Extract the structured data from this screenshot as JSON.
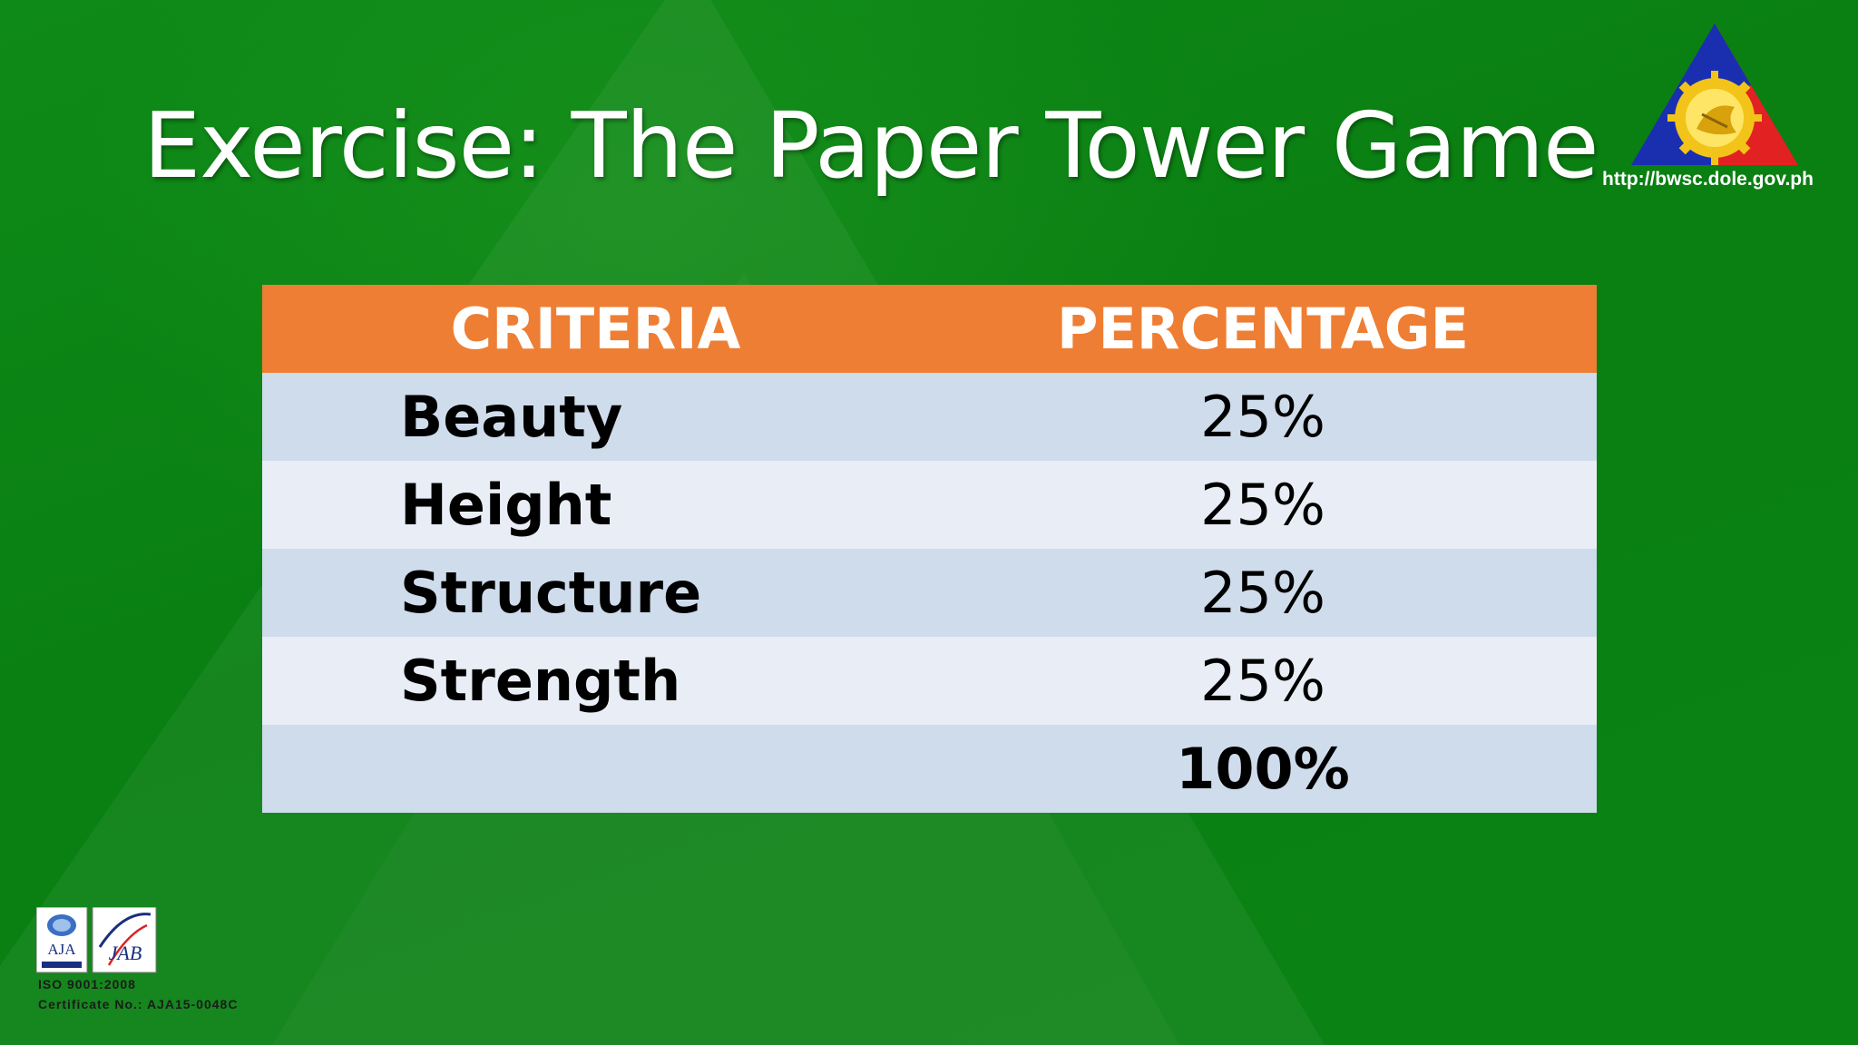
{
  "slide": {
    "title": "Exercise: The Paper Tower Game",
    "logo_url": "http://bwsc.dole.gov.ph"
  },
  "table": {
    "headers": [
      "CRITERIA",
      "PERCENTAGE"
    ],
    "rows": [
      {
        "criteria": "Beauty",
        "percentage": "25%"
      },
      {
        "criteria": "Height",
        "percentage": "25%"
      },
      {
        "criteria": "Structure",
        "percentage": "25%"
      },
      {
        "criteria": "Strength",
        "percentage": "25%"
      }
    ],
    "total": "100%"
  },
  "certification": {
    "badge_aja": "AJA",
    "badge_jab": "JAB",
    "standard": "ISO 9001:2008",
    "certificate": "Certificate No.: AJA15-0048C"
  },
  "colors": {
    "background": "#0b8514",
    "header": "#ee7e33",
    "row_dark": "#cfdcec",
    "row_light": "#e9eef6"
  }
}
